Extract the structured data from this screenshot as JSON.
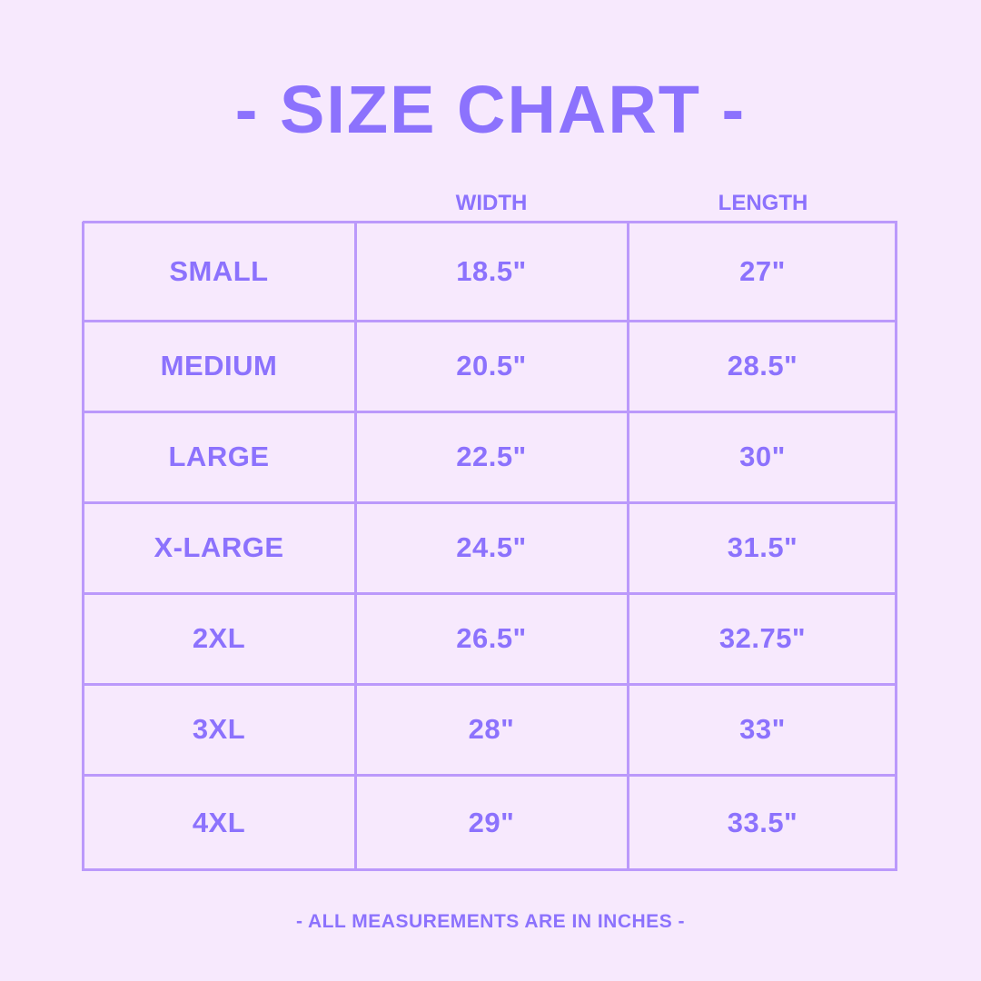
{
  "title": "- SIZE CHART -",
  "footer": "- ALL MEASUREMENTS ARE IN INCHES -",
  "colors": {
    "background": "#f7e9fd",
    "text": "#8c72fd",
    "grid": "#bb99fb"
  },
  "chart_data": {
    "type": "table",
    "columns": [
      "WIDTH",
      "LENGTH"
    ],
    "rows": [
      {
        "size": "SMALL",
        "width": "18.5\"",
        "length": "27\""
      },
      {
        "size": "MEDIUM",
        "width": "20.5\"",
        "length": "28.5\""
      },
      {
        "size": "LARGE",
        "width": "22.5\"",
        "length": "30\""
      },
      {
        "size": "X-LARGE",
        "width": "24.5\"",
        "length": "31.5\""
      },
      {
        "size": "2XL",
        "width": "26.5\"",
        "length": "32.75\""
      },
      {
        "size": "3XL",
        "width": "28\"",
        "length": "33\""
      },
      {
        "size": "4XL",
        "width": "29\"",
        "length": "33.5\""
      }
    ]
  }
}
